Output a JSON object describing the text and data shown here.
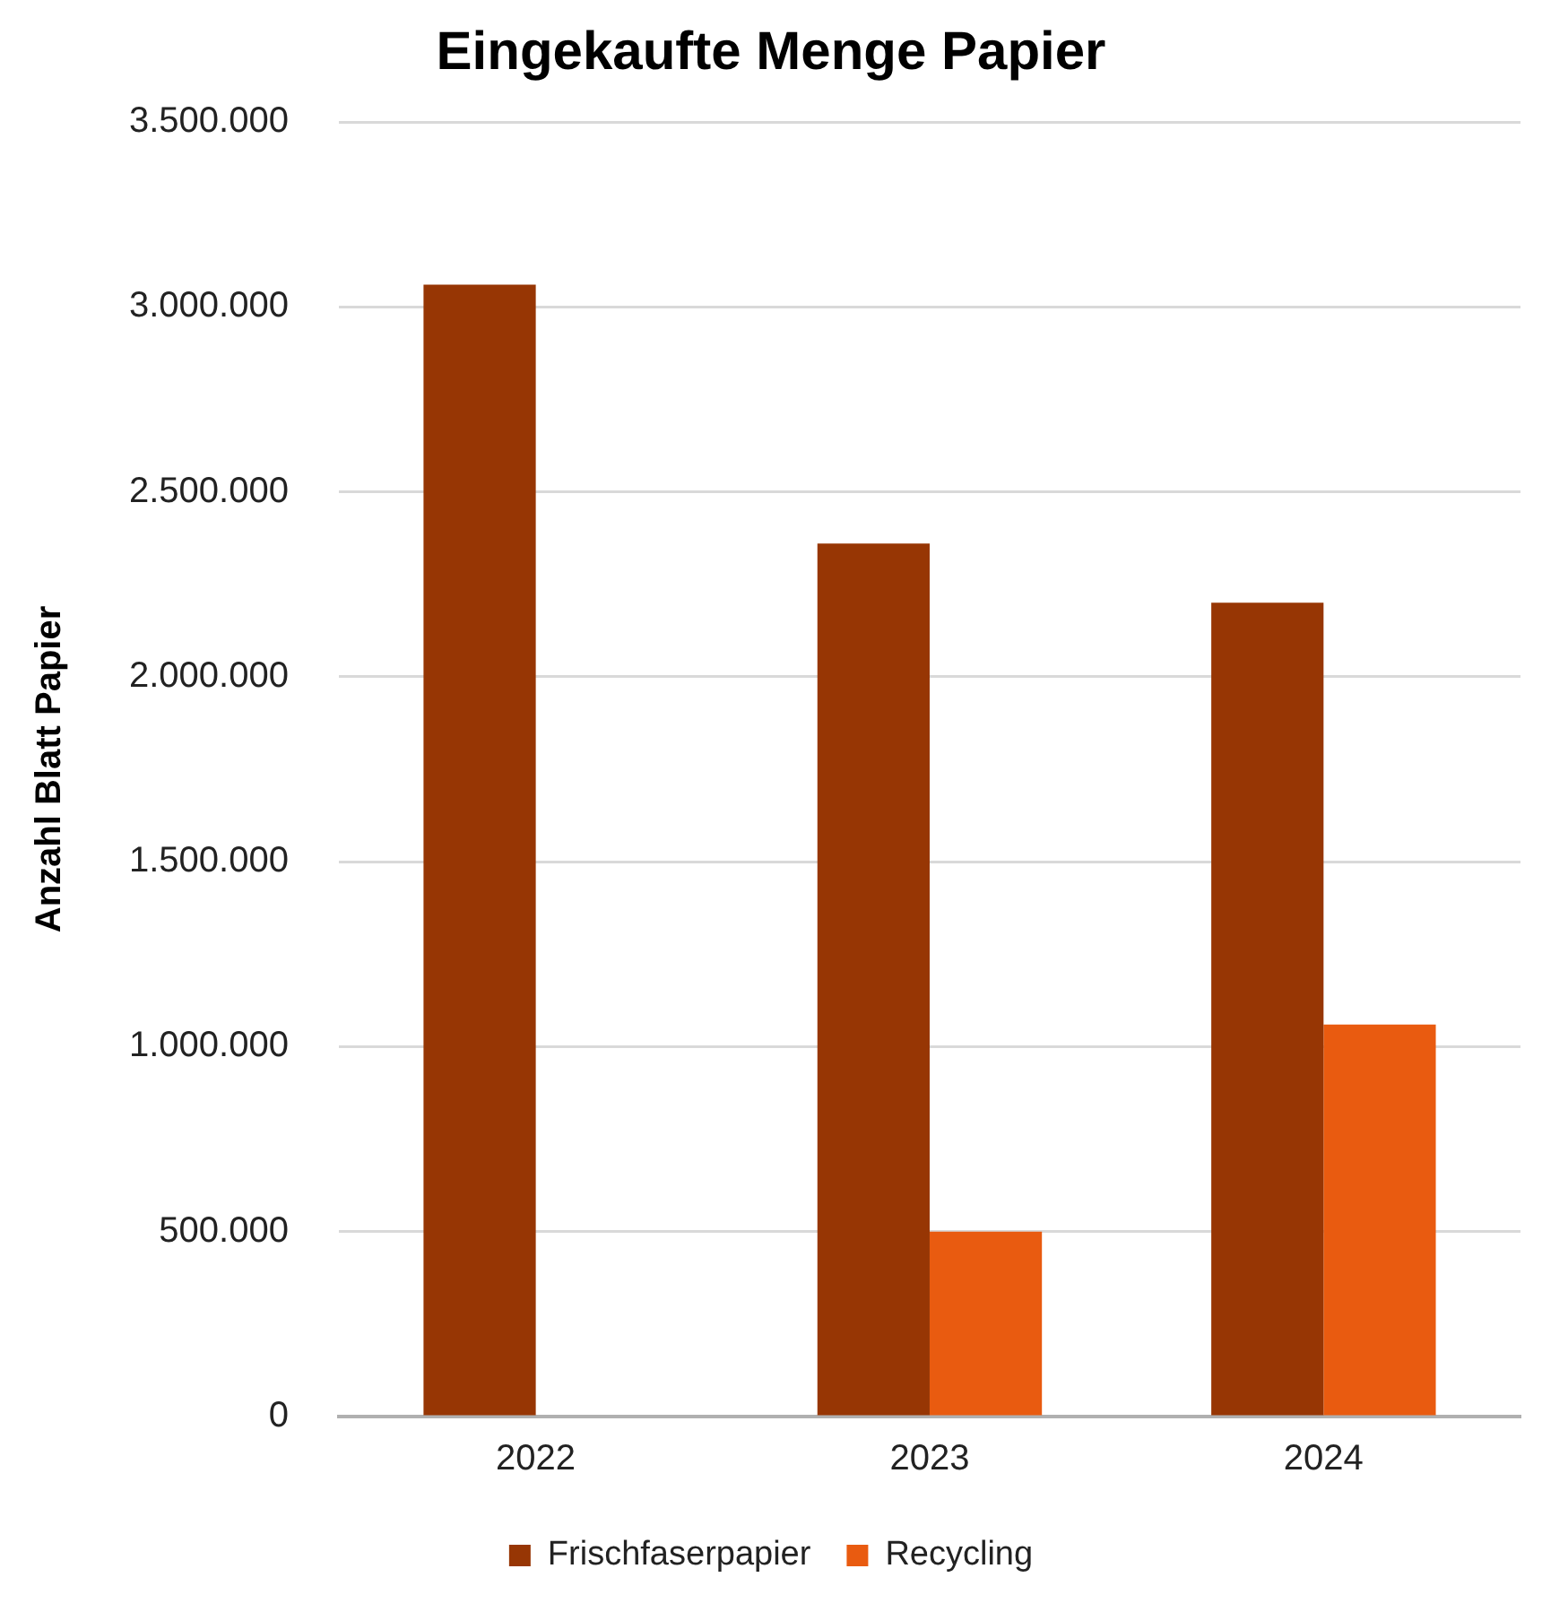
{
  "chart_data": {
    "type": "bar",
    "title": "Eingekaufte Menge Papier",
    "ylabel": "Anzahl Blatt Papier",
    "categories": [
      "2022",
      "2023",
      "2024"
    ],
    "series": [
      {
        "name": "Frischfaserpapier",
        "color": "#973604",
        "values": [
          3060000,
          2360000,
          2200000
        ]
      },
      {
        "name": "Recycling",
        "color": "#e95b10",
        "values": [
          0,
          500000,
          1060000
        ]
      }
    ],
    "ylim": [
      0,
      3500000
    ],
    "yticks": [
      {
        "value": 0,
        "label": "0"
      },
      {
        "value": 500000,
        "label": "500.000"
      },
      {
        "value": 1000000,
        "label": "1.000.000"
      },
      {
        "value": 1500000,
        "label": "1.500.000"
      },
      {
        "value": 2000000,
        "label": "2.000.000"
      },
      {
        "value": 2500000,
        "label": "2.500.000"
      },
      {
        "value": 3000000,
        "label": "3.000.000"
      },
      {
        "value": 3500000,
        "label": "3.500.000"
      }
    ],
    "grid": "y",
    "legend": "bottom"
  }
}
